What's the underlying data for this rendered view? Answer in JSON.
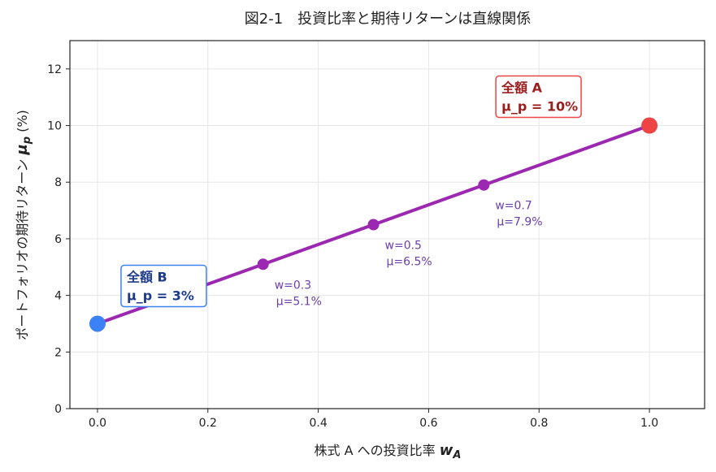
{
  "chart_data": {
    "type": "line",
    "title": "図2-1　投資比率と期待リターンは直線関係",
    "xlabel_text": "株式 A への投資比率 ",
    "xlabel_math": "w",
    "xlabel_sub": "A",
    "ylabel_text": "ポートフォリオの期待リターン ",
    "ylabel_math": "μ",
    "ylabel_sub": "p",
    "ylabel_unit": " (%)",
    "xlim": [
      -0.05,
      1.1
    ],
    "ylim": [
      0,
      13
    ],
    "xticks": [
      0.0,
      0.2,
      0.4,
      0.6,
      0.8,
      1.0
    ],
    "xtick_labels": [
      "0.0",
      "0.2",
      "0.4",
      "0.6",
      "0.8",
      "1.0"
    ],
    "yticks": [
      0,
      2,
      4,
      6,
      8,
      10,
      12
    ],
    "ytick_labels": [
      "0",
      "2",
      "4",
      "6",
      "8",
      "10",
      "12"
    ],
    "grid": true,
    "line": {
      "x": [
        0.0,
        1.0
      ],
      "y": [
        3.0,
        10.0
      ],
      "color": "#9c27b0"
    },
    "points": [
      {
        "x": 0.3,
        "y": 5.1,
        "label_w": "w=0.3",
        "label_mu": "μ=5.1%"
      },
      {
        "x": 0.5,
        "y": 6.5,
        "label_w": "w=0.5",
        "label_mu": "μ=6.5%"
      },
      {
        "x": 0.7,
        "y": 7.9,
        "label_w": "w=0.7",
        "label_mu": "μ=7.9%"
      }
    ],
    "point_color": "#9c27b0",
    "label_color": "#6a3fb0",
    "endpoints": [
      {
        "x": 0.0,
        "y": 3.0,
        "color": "#3b82f6",
        "line1": "全額 B",
        "line2": "μ_p = 3%",
        "box_border": "#3b82f6",
        "text_color": "#1e3a8a"
      },
      {
        "x": 1.0,
        "y": 10.0,
        "color": "#ef4444",
        "line1": "全額 A",
        "line2": "μ_p = 10%",
        "box_border": "#ef4444",
        "text_color": "#9b1c1c"
      }
    ]
  }
}
